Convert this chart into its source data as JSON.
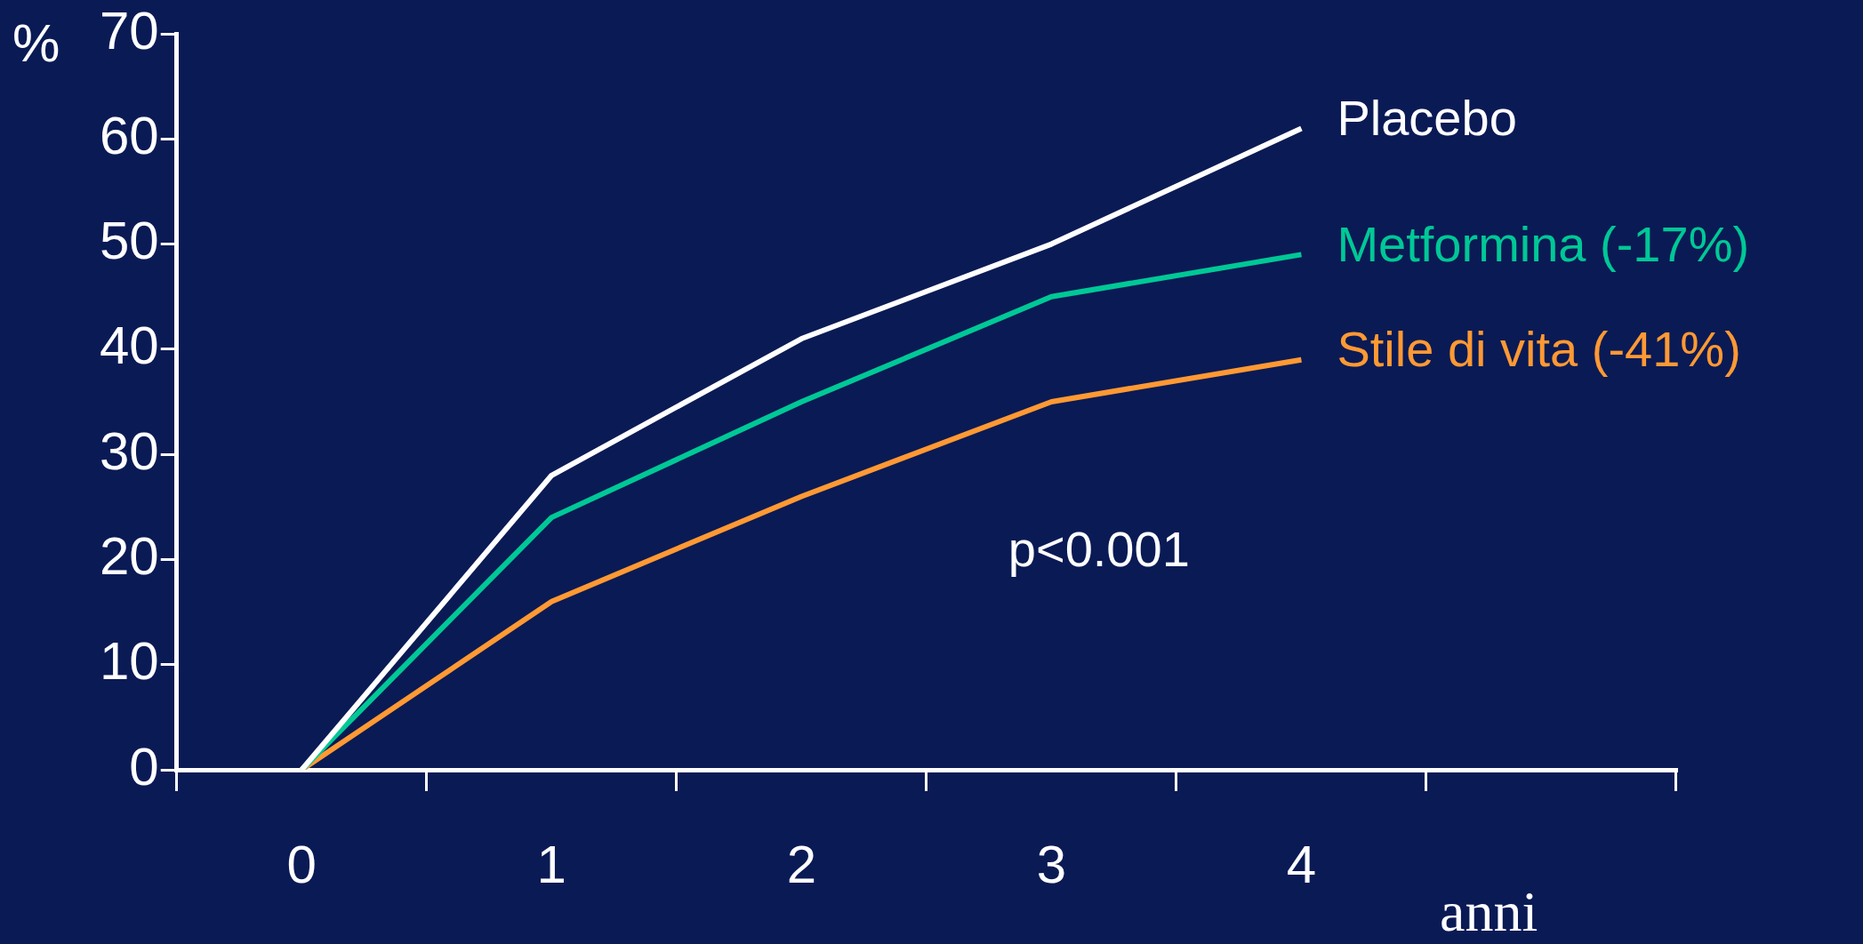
{
  "chart_data": {
    "type": "line",
    "ylabel": "%",
    "xlabel": "anni",
    "categories": [
      "0",
      "1",
      "2",
      "3",
      "4",
      null
    ],
    "ylim": [
      0,
      70
    ],
    "yticks": [
      0,
      10,
      20,
      30,
      40,
      50,
      60,
      70
    ],
    "series": [
      {
        "name": "Placebo",
        "color": "#ffffff",
        "values": [
          0,
          28,
          41,
          50,
          61,
          null
        ]
      },
      {
        "name": "Metformina (-17%)",
        "color": "#00c896",
        "values": [
          0,
          24,
          35,
          45,
          49,
          null
        ]
      },
      {
        "name": "Stile di vita (-41%)",
        "color": "#ff9933",
        "values": [
          0,
          16,
          26,
          35,
          39,
          null
        ]
      }
    ],
    "annotations": [
      "p<0.001"
    ],
    "grid": false,
    "legend": false,
    "marker": "none",
    "line_style": "solid"
  }
}
